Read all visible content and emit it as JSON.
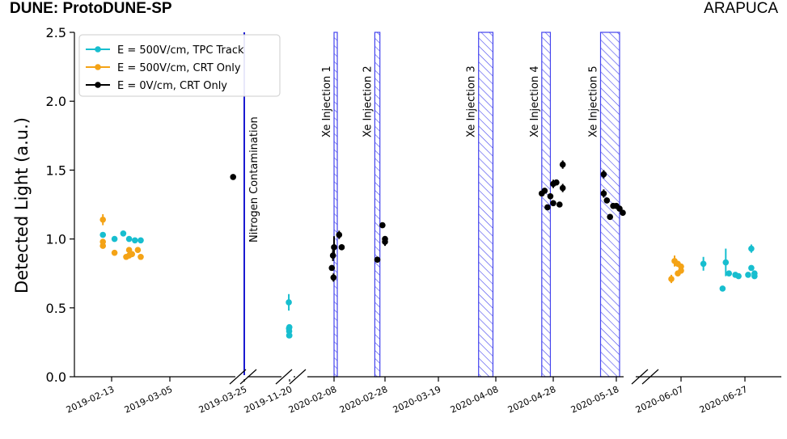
{
  "chart_data": {
    "type": "scatter",
    "title": "DUNE: ProtoDUNE-SP",
    "corner_label": "ARAPUCA",
    "ylabel": "Detected Light (a.u.)",
    "xlabel": "",
    "ylim": [
      0.0,
      2.5
    ],
    "yticks": [
      "0.0",
      "0.5",
      "1.0",
      "1.5",
      "2.0",
      "2.5"
    ],
    "x_tick_labels": [
      "2019-02-13",
      "2019-03-05",
      "2019-03-25",
      "2019-11-20",
      "2020-02-08",
      "2020-02-28",
      "2020-03-19",
      "2020-04-08",
      "2020-04-28",
      "2020-05-18",
      "2020-06-07",
      "2020-06-27"
    ],
    "x_axis_breaks": [
      "between 2019-03-25 and 2019-11-20",
      "between 2019-11-20 and 2020-02-08",
      "between 2020-05-18 and 2020-06-07"
    ],
    "legend_position": "top-left",
    "grid": false,
    "series": [
      {
        "name": "E = 500V/cm, TPC Track",
        "color": "#17becf",
        "points": [
          {
            "x": "2019-02-10",
            "y": 1.03,
            "err": 0.02
          },
          {
            "x": "2019-02-14",
            "y": 1.0,
            "err": 0.01
          },
          {
            "x": "2019-02-17",
            "y": 1.04,
            "err": 0.01
          },
          {
            "x": "2019-02-19",
            "y": 1.0,
            "err": 0.01
          },
          {
            "x": "2019-02-21",
            "y": 0.99,
            "err": 0.01
          },
          {
            "x": "2019-02-23",
            "y": 0.99,
            "err": 0.01
          },
          {
            "x": "2019-11-16",
            "y": 0.54,
            "err": 0.06
          },
          {
            "x": "2019-11-17",
            "y": 0.35,
            "err": 0.02
          },
          {
            "x": "2019-11-18",
            "y": 0.3,
            "err": 0.02
          },
          {
            "x": "2019-11-18",
            "y": 0.33,
            "err": 0.02
          },
          {
            "x": "2019-11-19",
            "y": 0.36,
            "err": 0.02
          },
          {
            "x": "2019-11-19",
            "y": 0.3,
            "err": 0.02
          },
          {
            "x": "2020-06-14",
            "y": 0.82,
            "err": 0.05
          },
          {
            "x": "2020-06-20",
            "y": 0.64,
            "err": 0.01
          },
          {
            "x": "2020-06-21",
            "y": 0.83,
            "err": 0.1
          },
          {
            "x": "2020-06-22",
            "y": 0.75,
            "err": 0.01
          },
          {
            "x": "2020-06-24",
            "y": 0.74,
            "err": 0.01
          },
          {
            "x": "2020-06-25",
            "y": 0.73,
            "err": 0.01
          },
          {
            "x": "2020-06-28",
            "y": 0.74,
            "err": 0.01
          },
          {
            "x": "2020-06-29",
            "y": 0.79,
            "err": 0.01
          },
          {
            "x": "2020-06-29",
            "y": 0.93,
            "err": 0.03
          },
          {
            "x": "2020-06-30",
            "y": 0.73,
            "err": 0.02
          },
          {
            "x": "2020-06-30",
            "y": 0.75,
            "err": 0.01
          }
        ]
      },
      {
        "name": "E = 500V/cm, CRT Only",
        "color": "#f4a316",
        "points": [
          {
            "x": "2019-02-10",
            "y": 1.14,
            "err": 0.04
          },
          {
            "x": "2019-02-10",
            "y": 0.98,
            "err": 0.02
          },
          {
            "x": "2019-02-10",
            "y": 0.95,
            "err": 0.02
          },
          {
            "x": "2019-02-14",
            "y": 0.9,
            "err": 0.01
          },
          {
            "x": "2019-02-18",
            "y": 0.87,
            "err": 0.01
          },
          {
            "x": "2019-02-19",
            "y": 0.88,
            "err": 0.01
          },
          {
            "x": "2019-02-19",
            "y": 0.92,
            "err": 0.01
          },
          {
            "x": "2019-02-20",
            "y": 0.89,
            "err": 0.01
          },
          {
            "x": "2019-02-22",
            "y": 0.92,
            "err": 0.01
          },
          {
            "x": "2019-02-23",
            "y": 0.87,
            "err": 0.01
          },
          {
            "x": "2020-06-04",
            "y": 0.71,
            "err": 0.03
          },
          {
            "x": "2020-06-05",
            "y": 0.84,
            "err": 0.04
          },
          {
            "x": "2020-06-06",
            "y": 0.75,
            "err": 0.02
          },
          {
            "x": "2020-06-06",
            "y": 0.82,
            "err": 0.02
          },
          {
            "x": "2020-06-07",
            "y": 0.77,
            "err": 0.02
          },
          {
            "x": "2020-06-07",
            "y": 0.8,
            "err": 0.02
          }
        ]
      },
      {
        "name": "E = 0V/cm, CRT Only",
        "color": "#000000",
        "points": [
          {
            "x": "2019-03-22",
            "y": 1.45,
            "err": 0.02
          },
          {
            "x": "2020-02-04",
            "y": 0.79,
            "err": 0.01
          },
          {
            "x": "2020-02-06",
            "y": 0.88,
            "err": 0.04
          },
          {
            "x": "2020-02-07",
            "y": 0.72,
            "err": 0.03
          },
          {
            "x": "2020-02-08",
            "y": 0.94,
            "err": 0.08
          },
          {
            "x": "2020-02-10",
            "y": 1.03,
            "err": 0.03
          },
          {
            "x": "2020-02-11",
            "y": 0.94,
            "err": 0.02
          },
          {
            "x": "2020-02-25",
            "y": 0.85,
            "err": 0.01
          },
          {
            "x": "2020-02-27",
            "y": 1.1,
            "err": 0.02
          },
          {
            "x": "2020-02-28",
            "y": 1.0,
            "err": 0.02
          },
          {
            "x": "2020-02-28",
            "y": 0.98,
            "err": 0.03
          },
          {
            "x": "2020-04-24",
            "y": 1.33,
            "err": 0.02
          },
          {
            "x": "2020-04-25",
            "y": 1.35,
            "err": 0.02
          },
          {
            "x": "2020-04-26",
            "y": 1.23,
            "err": 0.02
          },
          {
            "x": "2020-04-27",
            "y": 1.31,
            "err": 0.02
          },
          {
            "x": "2020-04-28",
            "y": 1.26,
            "err": 0.02
          },
          {
            "x": "2020-04-28",
            "y": 1.4,
            "err": 0.03
          },
          {
            "x": "2020-04-29",
            "y": 1.41,
            "err": 0.02
          },
          {
            "x": "2020-04-30",
            "y": 1.25,
            "err": 0.02
          },
          {
            "x": "2020-05-01",
            "y": 1.37,
            "err": 0.03
          },
          {
            "x": "2020-05-01",
            "y": 1.54,
            "err": 0.03
          },
          {
            "x": "2020-05-14",
            "y": 1.47,
            "err": 0.03
          },
          {
            "x": "2020-05-14",
            "y": 1.33,
            "err": 0.03
          },
          {
            "x": "2020-05-15",
            "y": 1.28,
            "err": 0.02
          },
          {
            "x": "2020-05-16",
            "y": 1.16,
            "err": 0.02
          },
          {
            "x": "2020-05-17",
            "y": 1.24,
            "err": 0.02
          },
          {
            "x": "2020-05-18",
            "y": 1.24,
            "err": 0.02
          },
          {
            "x": "2020-05-19",
            "y": 1.22,
            "err": 0.02
          },
          {
            "x": "2020-05-20",
            "y": 1.19,
            "err": 0.02
          }
        ]
      }
    ],
    "events": [
      {
        "label": "Nitrogen Contamination",
        "date": "2019-03-25",
        "kind": "line",
        "color": "#0000cc"
      },
      {
        "label": "Xe Injection 1",
        "start": "2020-02-08",
        "end": "2020-02-09",
        "kind": "band",
        "color": "#4444ee"
      },
      {
        "label": "Xe Injection 2",
        "start": "2020-02-24",
        "end": "2020-02-26",
        "kind": "band",
        "color": "#4444ee"
      },
      {
        "label": "Xe Injection 3",
        "start": "2020-04-02",
        "end": "2020-04-07",
        "kind": "band",
        "color": "#4444ee"
      },
      {
        "label": "Xe Injection 4",
        "start": "2020-04-24",
        "end": "2020-04-27",
        "kind": "band",
        "color": "#4444ee"
      },
      {
        "label": "Xe Injection 5",
        "start": "2020-05-13",
        "end": "2020-05-19",
        "kind": "band",
        "color": "#4444ee"
      }
    ]
  }
}
